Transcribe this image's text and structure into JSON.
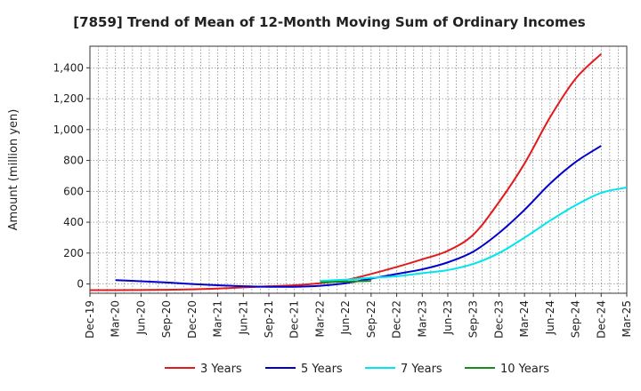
{
  "chart_data": {
    "type": "line",
    "title": "[7859]  Trend of Mean of 12-Month Moving Sum of Ordinary Incomes",
    "xlabel": "",
    "ylabel": "Amount (million yen)",
    "ylim": [
      -60,
      1540
    ],
    "yticks": [
      0,
      200,
      400,
      600,
      800,
      1000,
      1200,
      1400
    ],
    "ytick_labels": [
      "0",
      "200",
      "400",
      "600",
      "800",
      "1,000",
      "1,200",
      "1,400"
    ],
    "x_tick_labels": [
      "Dec-19",
      "Mar-20",
      "Jun-20",
      "Sep-20",
      "Dec-20",
      "Mar-21",
      "Jun-21",
      "Sep-21",
      "Dec-21",
      "Mar-22",
      "Jun-22",
      "Sep-22",
      "Dec-22",
      "Mar-23",
      "Jun-23",
      "Sep-23",
      "Dec-23",
      "Mar-24",
      "Jun-24",
      "Sep-24",
      "Dec-24",
      "Mar-25"
    ],
    "grid": true,
    "legend_position": "bottom",
    "series": [
      {
        "name": "3 Years",
        "color": "#e31a1c",
        "start_index": 0,
        "values": [
          -40,
          -40,
          -39,
          -38,
          -35,
          -30,
          -22,
          -15,
          -8,
          5,
          25,
          65,
          110,
          160,
          215,
          320,
          530,
          780,
          1080,
          1330,
          1490
        ]
      },
      {
        "name": "5 Years",
        "color": "#0000cc",
        "start_index": 1,
        "values": [
          25,
          18,
          10,
          0,
          -8,
          -15,
          -18,
          -18,
          -12,
          5,
          35,
          65,
          95,
          140,
          210,
          330,
          480,
          650,
          790,
          895
        ]
      },
      {
        "name": "7 Years",
        "color": "#00e5ee",
        "start_index": 9,
        "values": [
          20,
          28,
          40,
          50,
          70,
          90,
          130,
          200,
          300,
          410,
          510,
          590,
          625
        ]
      },
      {
        "name": "10 Years",
        "color": "#1a8a1a",
        "start_index": 9,
        "values": [
          10,
          15,
          20
        ]
      }
    ]
  }
}
